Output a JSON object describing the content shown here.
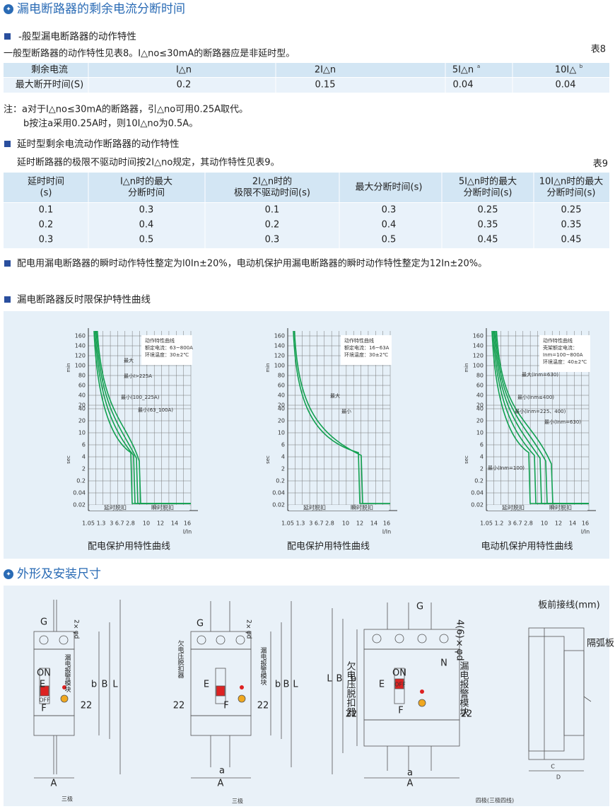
{
  "title": "漏电断路器的剩余电流分断时间",
  "general": {
    "heading": "-般型漏电断路器的动作特性",
    "intro": "一般型断路器的动作特性见表8。I△no≤30mA的断路器应是非延时型。",
    "table_no": "表8",
    "table": {
      "header": [
        {
          "text": "剩余电流"
        },
        {
          "text": "I△n"
        },
        {
          "text": "2I△n"
        },
        {
          "text": "5I△n",
          "sup": "a"
        },
        {
          "text": "10I△",
          "sup": "b"
        }
      ],
      "rows": [
        [
          "最大断开时间(S)",
          "0.2",
          "0.15",
          "0.04",
          "0.04"
        ]
      ]
    },
    "notes": [
      "注：a对于I△no≤30mA的断路器，引△no可用0.25A取代。",
      "b按注a采用0.25A时，则10I△no为0.5A。"
    ]
  },
  "delay": {
    "heading": "延时型剩余电流动作断路器的动作特性",
    "intro": "延时断路器的极限不驱动时间按2I△no规定，其动作特性见表9。",
    "table_no": "表9",
    "table": {
      "header": [
        [
          "延时时间",
          "(s)"
        ],
        [
          "I△n时的最大",
          "分断时间"
        ],
        [
          "2I△n时的",
          "极限不驱动时间(s)"
        ],
        [
          "最大分断时间(s)"
        ],
        [
          "5I△n时的最大",
          "分断时间(s)"
        ],
        [
          "10I△n时的最大",
          "分断时间(s)"
        ]
      ],
      "rows": [
        [
          "0.1",
          "0.3",
          "0.1",
          "0.3",
          "0.25",
          "0.25"
        ],
        [
          "0.2",
          "0.4",
          "0.2",
          "0.4",
          "0.35",
          "0.35"
        ],
        [
          "0.3",
          "0.5",
          "0.3",
          "0.5",
          "0.45",
          "0.45"
        ]
      ]
    }
  },
  "instant": "配电用漏电断路器的瞬时动作特性整定为l0In±20%，电动机保护用漏电断路器的瞬时动作特性整定为12In±20%。",
  "curves": {
    "heading": "漏电断路器反时限保护特性曲线",
    "charts": [
      {
        "caption": "配电保护用特性曲线",
        "info": [
          "动作特性曲线",
          "额定电流：63~800A",
          "环境温度：30±2℃"
        ],
        "labels": [
          "最大",
          "最小I>225A",
          "最小(100_225A)",
          "最小(63_100A)"
        ],
        "y_labels": [
          "160",
          "140",
          "120",
          "100",
          "80",
          "60",
          "40",
          "20",
          "40",
          "20",
          "10",
          "6",
          "4",
          "2",
          "0.2",
          "0.04",
          "0.02"
        ],
        "min": "min",
        "sec": "sec",
        "x_labels": [
          "1.05",
          "1.3",
          "3 6.7 2.8",
          "10",
          "12",
          "14",
          "16"
        ],
        "x_axis": "I/In",
        "zones": [
          "延时脱扣",
          "瞬时脱扣"
        ]
      },
      {
        "caption": "配电保护用特性曲线",
        "info": [
          "动作特性曲线",
          "额定电流：16~63A",
          "环境温度：30±2℃"
        ],
        "labels": [
          "最大",
          "最小"
        ],
        "y_labels": [
          "160",
          "140",
          "120",
          "100",
          "80",
          "60",
          "40",
          "20",
          "40",
          "20",
          "10",
          "6",
          "4",
          "2",
          "0.2",
          "0.04",
          "0.02"
        ],
        "min": "min",
        "sec": "sec",
        "x_labels": [
          "1.05",
          "1.3",
          "3 6.7 2.8",
          "10",
          "12",
          "14",
          "16"
        ],
        "x_axis": "I/In",
        "zones": [
          "延时脱扣",
          "瞬时脱扣"
        ]
      },
      {
        "caption": "电动机保护用特性曲线",
        "info": [
          "动作特性曲线",
          "壳架额定电流：",
          "Inm=100~800A",
          "环境温度：40±2℃"
        ],
        "labels": [
          "最大(Inm=630)",
          "最小(Inm≤400)",
          "最小(Inm=225、400)",
          "最小(Inm=630)",
          "最小(Inm=100)"
        ],
        "y_labels": [
          "160",
          "140",
          "120",
          "100",
          "80",
          "60",
          "40",
          "20",
          "40",
          "20",
          "10",
          "6",
          "4",
          "2",
          "0.2",
          "0.04",
          "0.02"
        ],
        "min": "min",
        "sec": "sec",
        "x_labels": [
          "1.05",
          "1.2",
          "3 6.7 2.8",
          "10",
          "12",
          "14",
          "16"
        ],
        "x_axis": "I/In",
        "zones": [
          "延时脱扣",
          "瞬时脱扣"
        ]
      }
    ]
  },
  "dimensions": {
    "heading": "外形及安装尺寸",
    "views": [
      {
        "caption": "三极",
        "labels": [
          "G",
          "2×φd",
          "E",
          "F",
          "22",
          "b",
          "B",
          "L",
          "A",
          "ON",
          "OFF",
          "漏电报警模块"
        ]
      },
      {
        "caption": "三极",
        "labels": [
          "欠电压脱扣器",
          "G",
          "2×φd",
          "漏电报警模块",
          "E",
          "22",
          "F",
          "22",
          "b",
          "B",
          "L",
          "a",
          "A"
        ]
      },
      {
        "caption": "四极(三极四线)",
        "labels": [
          "G",
          "4(6)×φd",
          "欠电压脱扣器",
          "漏电报警模块",
          "N",
          "L",
          "B",
          "b",
          "E",
          "F",
          "22",
          "22",
          "a",
          "A",
          "ON",
          "OFF"
        ]
      }
    ],
    "side": {
      "title": "板前接线(mm)",
      "labels": [
        "隔弧板",
        "C",
        "D"
      ]
    }
  }
}
